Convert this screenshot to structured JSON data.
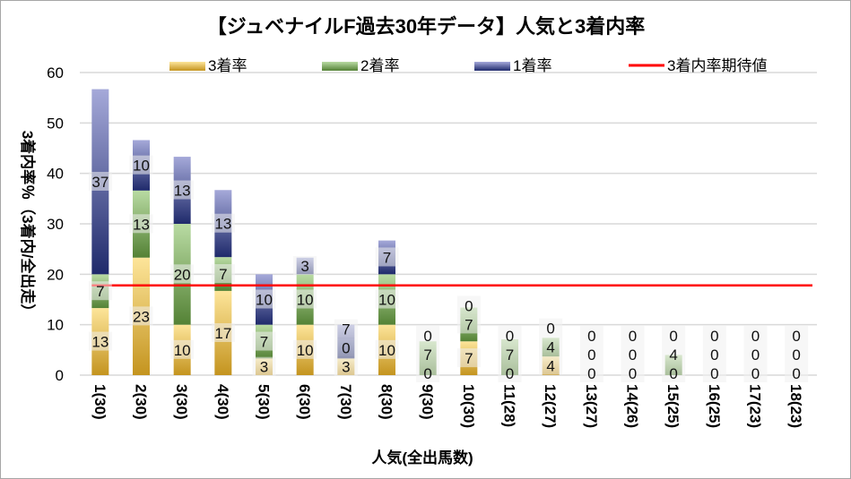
{
  "chart_data": {
    "type": "bar",
    "stacked": true,
    "title": "【ジュベナイルF過去30年データ】人気と3着内率",
    "xlabel": "人気(全出馬数)",
    "ylabel": "3着内率％（3着内/全出走）",
    "ylim": [
      0,
      60
    ],
    "yticks": [
      0,
      10,
      20,
      30,
      40,
      50,
      60
    ],
    "grid": true,
    "legend_position": "top",
    "categories": [
      "1(30)",
      "2(30)",
      "3(30)",
      "4(30)",
      "5(30)",
      "6(30)",
      "7(30)",
      "8(30)",
      "9(30)",
      "10(30)",
      "11(28)",
      "12(27)",
      "13(27)",
      "14(26)",
      "15(25)",
      "16(25)",
      "17(23)",
      "18(23)"
    ],
    "series": [
      {
        "name": "3着率",
        "colors": [
          "#fde59a",
          "#c4941f"
        ],
        "values": [
          13.3,
          23.3,
          10,
          16.7,
          3.3,
          10,
          3.3,
          10,
          0,
          6.7,
          0,
          3.7,
          0,
          0,
          0,
          0,
          0,
          0
        ]
      },
      {
        "name": "2着率",
        "colors": [
          "#b9dba3",
          "#548235"
        ],
        "values": [
          6.7,
          13.3,
          20,
          6.7,
          6.7,
          10,
          0,
          10,
          6.7,
          6.7,
          7.1,
          3.7,
          0,
          0,
          4,
          0,
          0,
          0
        ]
      },
      {
        "name": "1着率",
        "colors": [
          "#a5a9d9",
          "#1f2a6b"
        ],
        "values": [
          36.7,
          10,
          13.3,
          13.3,
          10,
          3.3,
          6.7,
          6.7,
          0,
          0,
          0,
          0,
          0,
          0,
          0,
          0,
          0,
          0
        ]
      }
    ],
    "reference_line": {
      "name": "3着内率期待値",
      "value": 17.8,
      "color": "#ff0000"
    }
  }
}
